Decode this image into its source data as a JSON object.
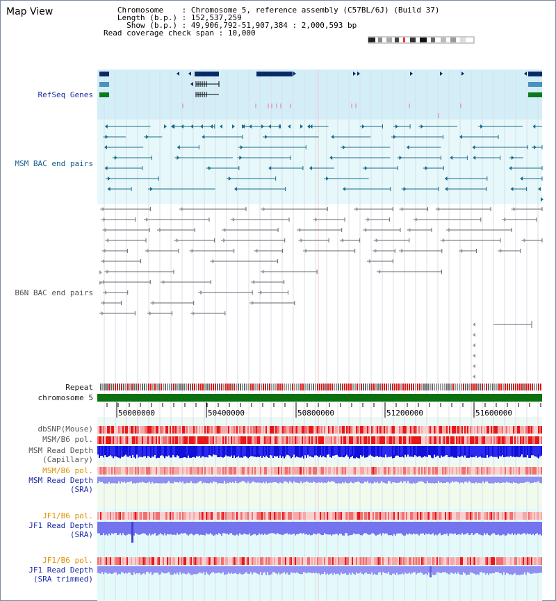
{
  "view_title": "Map View",
  "info": {
    "chromosome_key": "Chromosome",
    "chromosome_val": "Chromosome 5, reference assembly (C57BL/6J) (Build 37)",
    "length_key": "Length (b.p.)",
    "length_val": "152,537,259",
    "show_key": "Show (b.p.)",
    "show_val": "49,906,792-51,907,384 : 2,000,593 bp",
    "coverage_key": "Read coverage check span",
    "coverage_val": "10,000"
  },
  "tracks": {
    "refseq": "RefSeq Genes",
    "msm_bac": "MSM BAC end pairs",
    "b6n_bac": "B6N BAC end pairs",
    "repeat": "Repeat",
    "chromosome": "chromosome 5",
    "dbsnp": "dbSNP(Mouse)",
    "msm_b6_pol_1": "MSM/B6 pol.",
    "msm_read_cap_1": "MSM Read Depth",
    "msm_read_cap_2": "(Capillary)",
    "msm_b6_pol_2": "MSM/B6 pol.",
    "msm_read_sra_1": "MSM Read Depth",
    "msm_read_sra_2": "(SRA)",
    "jf1_b6_pol_1": "JF1/B6 pol.",
    "jf1_read_sra_1": "JF1 Read Depth",
    "jf1_read_sra_2": "(SRA)",
    "jf1_b6_pol_2": "JF1/B6 pol.",
    "jf1_read_trim_1": "JF1 Read Depth",
    "jf1_read_trim_2": "(SRA trimmed)"
  },
  "axis_ticks": [
    "50000000",
    "50400000",
    "50800000",
    "51200000",
    "51600000"
  ],
  "colors": {
    "refseq_bg": "#d4eef8",
    "bac_bg": "#e6f8fa",
    "pol_light": "#f5b0b0",
    "pol_dark": "#e02020",
    "depth_dark": "#1010e0",
    "depth_light": "#8a8af5",
    "chromosome_bar": "#0a7010",
    "gene_dark": "#0a2a66",
    "msm_pair": "#1a6a8a",
    "b6n_pair": "#666666"
  }
}
